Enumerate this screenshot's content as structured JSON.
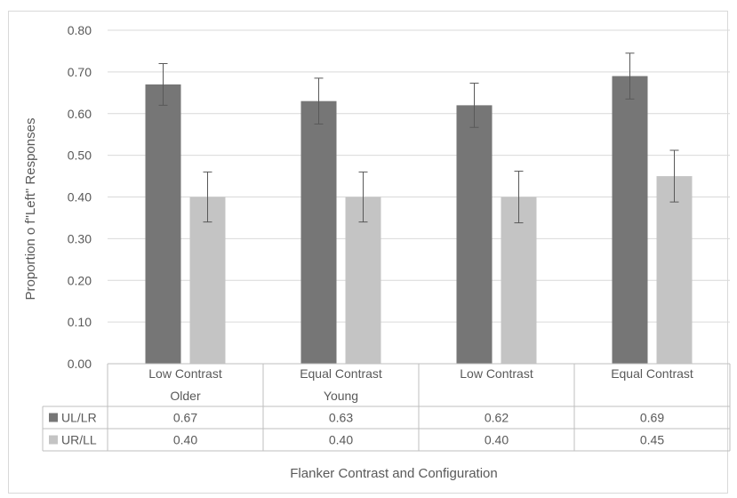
{
  "chart_data": {
    "type": "bar",
    "ylabel": "Proportion o f\"Left\" Responses",
    "xlabel": "Flanker Contrast and Configuration",
    "ylim": [
      0,
      0.8
    ],
    "yticks": [
      "0.00",
      "0.10",
      "0.20",
      "0.30",
      "0.40",
      "0.50",
      "0.60",
      "0.70",
      "0.80"
    ],
    "categories": [
      {
        "label": "Low Contrast",
        "group": "Older"
      },
      {
        "label": "Equal Contrast",
        "group": "Young"
      },
      {
        "label": "Low Contrast",
        "group": ""
      },
      {
        "label": "Equal Contrast",
        "group": ""
      }
    ],
    "series": [
      {
        "name": "UL/LR",
        "color": "#767676",
        "values": [
          0.67,
          0.63,
          0.62,
          0.69
        ],
        "value_labels": [
          "0.67",
          "0.63",
          "0.62",
          "0.69"
        ],
        "error": [
          0.05,
          0.055,
          0.053,
          0.055
        ]
      },
      {
        "name": "UR/LL",
        "color": "#c4c4c4",
        "values": [
          0.4,
          0.4,
          0.4,
          0.45
        ],
        "value_labels": [
          "0.40",
          "0.40",
          "0.40",
          "0.45"
        ],
        "error": [
          0.06,
          0.06,
          0.062,
          0.062
        ]
      }
    ],
    "grid": true,
    "legend": "data-table"
  }
}
